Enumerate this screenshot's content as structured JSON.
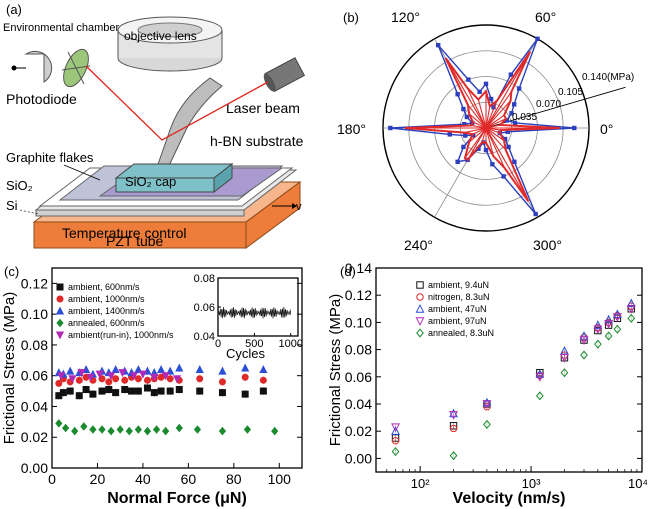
{
  "panels": {
    "a": {
      "label": "(a)",
      "labels": {
        "chamber": "Environmental chamber",
        "objective": "objective lens",
        "photodiode": "Photodiode",
        "laser": "Laser beam",
        "hbn": "h-BN substrate",
        "graphite": "Graphite flakes",
        "sio2cap": "SiO₂ cap",
        "sio2": "SiO₂",
        "si": "Si",
        "temp": "Temperature control",
        "pzt": "PZT tube",
        "v": "v"
      },
      "colors": {
        "temp": "#f6b58a",
        "pzt": "#ee7d3b",
        "cap": "#7fc1c9",
        "hbn": "#a99bd0",
        "laser": "#e0241b"
      }
    },
    "b": {
      "label": "(b)",
      "angle_labels": [
        "120°",
        "60°",
        "180°",
        "0°",
        "240°",
        "300°"
      ],
      "radial_labels": [
        "0.140(MPa)",
        "0.105",
        "0.070",
        "0.035"
      ]
    },
    "c": {
      "label": "(c)",
      "inset": {
        "xlabel": "Cycles",
        "xticks": [
          "0",
          "500",
          "1000"
        ],
        "yticks": [
          "0.08",
          "0.06",
          "0.04"
        ]
      }
    },
    "d": {
      "label": "(d)"
    }
  },
  "chart_data": [
    {
      "panel": "b",
      "type": "line",
      "polar": true,
      "rmax": 0.14,
      "rticks": [
        0.035,
        0.07,
        0.105,
        0.14
      ],
      "series": [
        {
          "color": "#2b3fbf",
          "points": [
            [
              0,
              0.12
            ],
            [
              10,
              0.04
            ],
            [
              20,
              0.03
            ],
            [
              30,
              0.04
            ],
            [
              40,
              0.05
            ],
            [
              50,
              0.07
            ],
            [
              60,
              0.14
            ],
            [
              65,
              0.08
            ],
            [
              70,
              0.03
            ],
            [
              80,
              0.04
            ],
            [
              90,
              0.06
            ],
            [
              100,
              0.05
            ],
            [
              110,
              0.07
            ],
            [
              120,
              0.13
            ],
            [
              130,
              0.06
            ],
            [
              140,
              0.04
            ],
            [
              150,
              0.03
            ],
            [
              160,
              0.02
            ],
            [
              170,
              0.03
            ],
            [
              180,
              0.13
            ],
            [
              190,
              0.05
            ],
            [
              200,
              0.03
            ],
            [
              210,
              0.02
            ],
            [
              220,
              0.04
            ],
            [
              230,
              0.06
            ],
            [
              240,
              0.05
            ],
            [
              250,
              0.03
            ],
            [
              260,
              0.02
            ],
            [
              270,
              0.03
            ],
            [
              280,
              0.05
            ],
            [
              290,
              0.07
            ],
            [
              300,
              0.135
            ],
            [
              310,
              0.06
            ],
            [
              320,
              0.04
            ],
            [
              330,
              0.03
            ],
            [
              340,
              0.02
            ],
            [
              350,
              0.03
            ]
          ]
        },
        {
          "color": "#e02a2a",
          "points": [
            [
              0,
              0.1
            ],
            [
              12,
              0.02
            ],
            [
              25,
              0.03
            ],
            [
              35,
              0.03
            ],
            [
              48,
              0.05
            ],
            [
              55,
              0.06
            ],
            [
              60,
              0.12
            ],
            [
              68,
              0.04
            ],
            [
              80,
              0.03
            ],
            [
              90,
              0.05
            ],
            [
              105,
              0.04
            ],
            [
              115,
              0.06
            ],
            [
              120,
              0.11
            ],
            [
              128,
              0.04
            ],
            [
              140,
              0.03
            ],
            [
              155,
              0.02
            ],
            [
              170,
              0.02
            ],
            [
              180,
              0.11
            ],
            [
              192,
              0.03
            ],
            [
              205,
              0.02
            ],
            [
              220,
              0.03
            ],
            [
              235,
              0.05
            ],
            [
              240,
              0.05
            ],
            [
              255,
              0.02
            ],
            [
              270,
              0.02
            ],
            [
              285,
              0.04
            ],
            [
              295,
              0.06
            ],
            [
              300,
              0.115
            ],
            [
              312,
              0.04
            ],
            [
              325,
              0.03
            ],
            [
              340,
              0.02
            ],
            [
              352,
              0.02
            ]
          ]
        }
      ]
    },
    {
      "panel": "c",
      "type": "scatter",
      "xlabel": "Normal Force (μN)",
      "ylabel": "Frictional Stress (MPa)",
      "xlim": [
        0,
        110
      ],
      "ylim": [
        0,
        0.13
      ],
      "xticks": [
        0,
        20,
        40,
        60,
        80,
        100
      ],
      "yticks": [
        0.0,
        0.02,
        0.04,
        0.06,
        0.08,
        0.1,
        0.12
      ],
      "legend_position": "top-left",
      "series": [
        {
          "name": "ambient, 600nm/s",
          "color": "#111111",
          "marker": "square",
          "x": [
            3,
            5,
            8,
            12,
            15,
            18,
            22,
            25,
            28,
            32,
            35,
            38,
            42,
            45,
            48,
            52,
            56,
            65,
            75,
            85,
            93
          ],
          "y": [
            0.047,
            0.049,
            0.05,
            0.047,
            0.051,
            0.048,
            0.05,
            0.051,
            0.049,
            0.051,
            0.05,
            0.05,
            0.052,
            0.049,
            0.05,
            0.05,
            0.051,
            0.05,
            0.049,
            0.048,
            0.05
          ]
        },
        {
          "name": "ambient, 1000nm/s",
          "color": "#e02a2a",
          "marker": "circle",
          "x": [
            3,
            5,
            8,
            12,
            15,
            18,
            22,
            25,
            28,
            32,
            35,
            38,
            42,
            45,
            48,
            52,
            56,
            65,
            75,
            85,
            93
          ],
          "y": [
            0.055,
            0.058,
            0.056,
            0.057,
            0.059,
            0.057,
            0.058,
            0.056,
            0.058,
            0.057,
            0.059,
            0.058,
            0.057,
            0.058,
            0.059,
            0.058,
            0.057,
            0.058,
            0.056,
            0.059,
            0.057
          ]
        },
        {
          "name": "ambient, 1400nm/s",
          "color": "#2b4fd6",
          "marker": "triangle-up",
          "x": [
            3,
            5,
            8,
            12,
            15,
            18,
            22,
            25,
            28,
            32,
            35,
            38,
            42,
            45,
            48,
            52,
            56,
            65,
            75,
            85,
            93
          ],
          "y": [
            0.062,
            0.061,
            0.063,
            0.062,
            0.064,
            0.061,
            0.063,
            0.062,
            0.064,
            0.063,
            0.062,
            0.064,
            0.063,
            0.062,
            0.064,
            0.063,
            0.065,
            0.064,
            0.063,
            0.065,
            0.064
          ]
        },
        {
          "name": "annealed, 600nm/s",
          "color": "#1b8a2e",
          "marker": "diamond",
          "x": [
            3,
            6,
            10,
            14,
            18,
            22,
            26,
            30,
            34,
            38,
            42,
            46,
            50,
            56,
            64,
            75,
            86,
            98
          ],
          "y": [
            0.029,
            0.026,
            0.024,
            0.027,
            0.025,
            0.025,
            0.024,
            0.025,
            0.024,
            0.025,
            0.024,
            0.025,
            0.024,
            0.026,
            0.025,
            0.024,
            0.025,
            0.024
          ]
        },
        {
          "name": "ambient(run-in), 1000nm/s",
          "color": "#b02ab8",
          "marker": "triangle-down",
          "x": [
            4,
            9,
            13,
            17,
            21,
            26,
            31,
            36,
            40,
            45,
            50,
            55
          ],
          "y": [
            0.06,
            0.058,
            0.062,
            0.059,
            0.061,
            0.06,
            0.062,
            0.06,
            0.061,
            0.059,
            0.06,
            0.058
          ]
        }
      ]
    },
    {
      "panel": "c-inset",
      "type": "line",
      "xlabel": "Cycles",
      "xlim": [
        0,
        1100
      ],
      "ylim": [
        0.04,
        0.08
      ],
      "series": [
        {
          "color": "#111111",
          "mean": 0.056,
          "amplitude": 0.004
        }
      ]
    },
    {
      "panel": "d",
      "type": "scatter",
      "xlabel": "Velocity (nm/s)",
      "ylabel": "Frictional Stress (MPa)",
      "xscale": "log",
      "xlim": [
        40,
        10000
      ],
      "ylim": [
        -0.01,
        0.14
      ],
      "xticks": [
        "10²",
        "10³",
        "10⁴"
      ],
      "yticks": [
        0.0,
        0.02,
        0.04,
        0.06,
        0.08,
        0.1,
        0.12,
        0.14
      ],
      "legend_position": "top-left",
      "series": [
        {
          "name": "ambient, 9.4uN",
          "color": "#111111",
          "marker": "square-open",
          "x": [
            60,
            200,
            400,
            1200,
            2000,
            3000,
            4000,
            5000,
            6000,
            8000
          ],
          "y": [
            0.015,
            0.024,
            0.04,
            0.063,
            0.074,
            0.087,
            0.094,
            0.098,
            0.103,
            0.11
          ]
        },
        {
          "name": "nitrogen, 8.3uN",
          "color": "#e02a2a",
          "marker": "circle-open",
          "x": [
            60,
            200,
            400,
            1200,
            2000,
            3000,
            4000,
            5000,
            6000,
            8000
          ],
          "y": [
            0.013,
            0.022,
            0.038,
            0.061,
            0.076,
            0.089,
            0.096,
            0.1,
            0.105,
            0.112
          ]
        },
        {
          "name": "ambient, 47uN",
          "color": "#2b4fd6",
          "marker": "triangle-up-open",
          "x": [
            60,
            200,
            400,
            1200,
            2000,
            3000,
            4000,
            5000,
            6000,
            8000
          ],
          "y": [
            0.02,
            0.033,
            0.041,
            0.062,
            0.079,
            0.09,
            0.098,
            0.102,
            0.106,
            0.114
          ]
        },
        {
          "name": "ambient, 97uN",
          "color": "#b02ab8",
          "marker": "triangle-down-open",
          "x": [
            60,
            200,
            400,
            1200,
            2000,
            3000,
            4000,
            5000,
            6000,
            8000
          ],
          "y": [
            0.023,
            0.032,
            0.04,
            0.06,
            0.074,
            0.087,
            0.095,
            0.099,
            0.104,
            0.11
          ]
        },
        {
          "name": "annealed, 8.3uN",
          "color": "#1b8a2e",
          "marker": "diamond-open",
          "x": [
            60,
            200,
            400,
            1200,
            2000,
            3000,
            4000,
            5000,
            6000,
            8000
          ],
          "y": [
            0.005,
            0.002,
            0.025,
            0.046,
            0.063,
            0.076,
            0.084,
            0.09,
            0.095,
            0.103
          ]
        }
      ]
    }
  ]
}
